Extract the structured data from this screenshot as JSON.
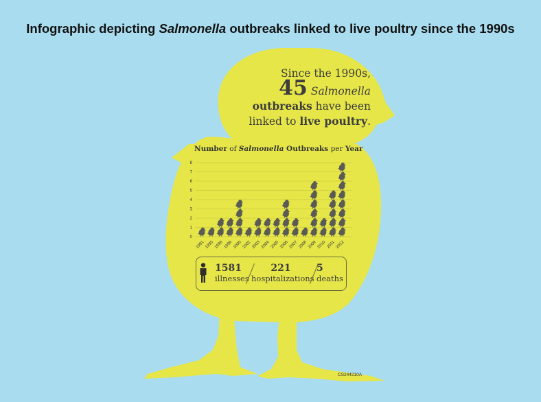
{
  "title": {
    "prefix": "Infographic depicting ",
    "italic": "Salmonella",
    "suffix": " outbreaks linked to live poultry since the 1990s"
  },
  "headline": {
    "line1": "Since the 1990s,",
    "count": "45",
    "italic_word": "Salmonella",
    "bold_word": "outbreaks",
    "line3_rest": " have been",
    "line4_start": "linked to ",
    "line4_bold": "live poultry",
    "line4_end": "."
  },
  "chart_title": {
    "part1": "Number",
    "part2": " of ",
    "part3": "Salmonella",
    "part4": " Outbreaks",
    "part5": " per ",
    "part6": "Year"
  },
  "stats": {
    "illnesses_num": "1581",
    "illnesses_label": "illnesses",
    "hosp_num": "221",
    "hosp_label": "hospitalizations",
    "deaths_num": "5",
    "deaths_label": "deaths"
  },
  "code": "CS244210A",
  "colors": {
    "background": "#a9dcef",
    "chick": "#e6e649",
    "icon": "#5b5b55",
    "grid": "#bcbc3c"
  },
  "icons": {
    "person": "person-icon",
    "chick_marker": "chick-icon"
  },
  "chart_data": {
    "type": "bar",
    "title": "Number of Salmonella Outbreaks per Year",
    "categories": [
      "1991",
      "1995",
      "1996",
      "1999",
      "2000",
      "2002",
      "2003",
      "2004",
      "2005",
      "2006",
      "2007",
      "2008",
      "2009",
      "2010",
      "2011",
      "2012"
    ],
    "values": [
      1,
      1,
      2,
      2,
      4,
      1,
      2,
      2,
      2,
      4,
      2,
      1,
      6,
      2,
      5,
      8
    ],
    "yticks": [
      "0",
      "1",
      "2",
      "3",
      "4",
      "5",
      "6",
      "7",
      "8"
    ],
    "ylim": [
      0,
      8
    ],
    "grid": true
  }
}
